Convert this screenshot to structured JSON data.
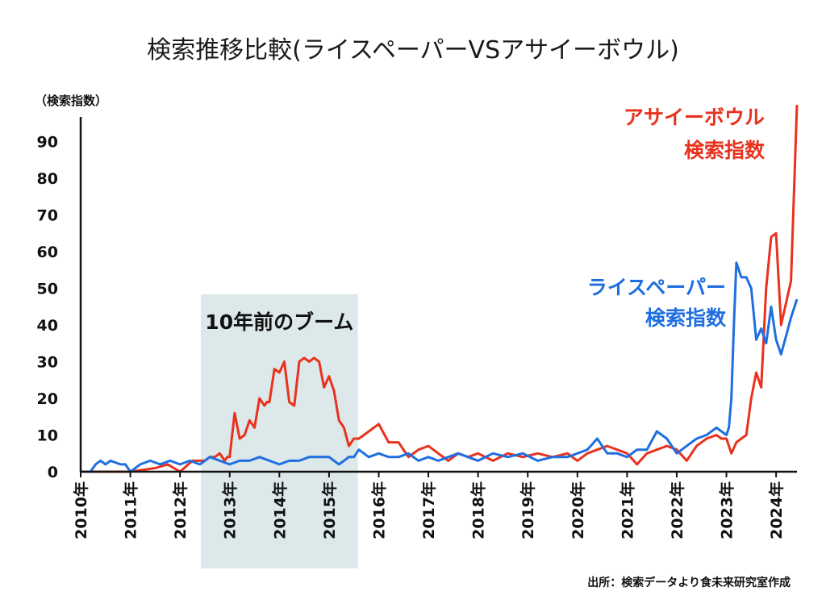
{
  "chart_data": {
    "type": "line",
    "title": "検索推移比較(ライスペーパーVSアサイーボウル)",
    "ylabel": "（検索指数）",
    "ylim": [
      0,
      100
    ],
    "yticks": [
      0,
      10,
      20,
      30,
      40,
      50,
      60,
      70,
      80,
      90
    ],
    "xlim": [
      2010.0,
      2024.42
    ],
    "xticks": [
      "2010年",
      "2011年",
      "2012年",
      "2013年",
      "2014年",
      "2015年",
      "2016年",
      "2017年",
      "2018年",
      "2019年",
      "2020年",
      "2021年",
      "2022年",
      "2023年",
      "2024年"
    ],
    "grid": false,
    "highlight": {
      "x_start": 2012.42,
      "x_end": 2015.58,
      "label": "10年前のブーム"
    },
    "series": [
      {
        "label_lines": [
          "アサイーボウル",
          "検索指数"
        ],
        "color": "#e8321e",
        "x": [
          2010.0,
          2010.5,
          2011.0,
          2011.5,
          2011.75,
          2012.0,
          2012.25,
          2012.5,
          2012.6,
          2012.7,
          2012.8,
          2012.9,
          2012.95,
          2013.0,
          2013.1,
          2013.2,
          2013.3,
          2013.4,
          2013.5,
          2013.6,
          2013.7,
          2013.75,
          2013.8,
          2013.9,
          2014.0,
          2014.1,
          2014.2,
          2014.3,
          2014.4,
          2014.5,
          2014.6,
          2014.7,
          2014.8,
          2014.9,
          2015.0,
          2015.1,
          2015.2,
          2015.3,
          2015.4,
          2015.5,
          2015.6,
          2015.8,
          2016.0,
          2016.2,
          2016.4,
          2016.6,
          2016.8,
          2017.0,
          2017.2,
          2017.4,
          2017.6,
          2017.8,
          2018.0,
          2018.3,
          2018.6,
          2018.9,
          2019.2,
          2019.5,
          2019.8,
          2020.0,
          2020.2,
          2020.4,
          2020.6,
          2020.8,
          2021.0,
          2021.2,
          2021.4,
          2021.6,
          2021.8,
          2022.0,
          2022.2,
          2022.4,
          2022.6,
          2022.8,
          2022.9,
          2023.0,
          2023.1,
          2023.2,
          2023.3,
          2023.4,
          2023.5,
          2023.6,
          2023.7,
          2023.8,
          2023.9,
          2024.0,
          2024.1,
          2024.2,
          2024.3,
          2024.42
        ],
        "y": [
          0,
          0,
          0,
          1,
          2,
          0,
          3,
          3,
          4,
          4,
          5,
          3,
          4,
          4,
          16,
          9,
          10,
          14,
          12,
          20,
          18,
          19,
          19,
          28,
          27,
          30,
          19,
          18,
          30,
          31,
          30,
          31,
          30,
          23,
          26,
          22,
          14,
          12,
          7,
          9,
          9,
          11,
          13,
          8,
          8,
          4,
          6,
          7,
          5,
          3,
          5,
          4,
          5,
          3,
          5,
          4,
          5,
          4,
          5,
          3,
          5,
          6,
          7,
          6,
          5,
          2,
          5,
          6,
          7,
          6,
          3,
          7,
          9,
          10,
          9,
          9,
          5,
          8,
          9,
          10,
          20,
          27,
          23,
          50,
          64,
          65,
          40,
          46,
          52,
          100
        ]
      },
      {
        "label_lines": [
          "ライスペーパー",
          "検索指数"
        ],
        "color": "#1f6fe0",
        "x": [
          2010.0,
          2010.2,
          2010.3,
          2010.4,
          2010.5,
          2010.6,
          2010.8,
          2010.9,
          2011.0,
          2011.2,
          2011.4,
          2011.6,
          2011.8,
          2012.0,
          2012.2,
          2012.4,
          2012.6,
          2012.8,
          2013.0,
          2013.2,
          2013.4,
          2013.6,
          2013.8,
          2014.0,
          2014.2,
          2014.4,
          2014.6,
          2014.8,
          2015.0,
          2015.1,
          2015.2,
          2015.3,
          2015.4,
          2015.5,
          2015.6,
          2015.8,
          2016.0,
          2016.2,
          2016.4,
          2016.6,
          2016.8,
          2017.0,
          2017.2,
          2017.4,
          2017.6,
          2017.8,
          2018.0,
          2018.3,
          2018.6,
          2018.9,
          2019.2,
          2019.5,
          2019.8,
          2020.0,
          2020.2,
          2020.4,
          2020.6,
          2020.8,
          2021.0,
          2021.2,
          2021.4,
          2021.6,
          2021.8,
          2022.0,
          2022.2,
          2022.4,
          2022.6,
          2022.8,
          2022.9,
          2023.0,
          2023.05,
          2023.1,
          2023.15,
          2023.2,
          2023.3,
          2023.4,
          2023.5,
          2023.6,
          2023.7,
          2023.8,
          2023.9,
          2024.0,
          2024.1,
          2024.2,
          2024.3,
          2024.42
        ],
        "y": [
          0,
          0,
          2,
          3,
          2,
          3,
          2,
          2,
          0,
          2,
          3,
          2,
          3,
          2,
          3,
          2,
          4,
          3,
          2,
          3,
          3,
          4,
          3,
          2,
          3,
          3,
          4,
          4,
          4,
          3,
          2,
          3,
          4,
          4,
          6,
          4,
          5,
          4,
          4,
          5,
          3,
          4,
          3,
          4,
          5,
          4,
          3,
          5,
          4,
          5,
          3,
          4,
          4,
          5,
          6,
          9,
          5,
          5,
          4,
          6,
          6,
          11,
          9,
          5,
          7,
          9,
          10,
          12,
          11,
          10,
          12,
          20,
          40,
          57,
          53,
          53,
          50,
          36,
          39,
          35,
          45,
          36,
          32,
          37,
          42,
          47
        ]
      }
    ],
    "source": "出所：検索データより食未来研究室作成"
  }
}
